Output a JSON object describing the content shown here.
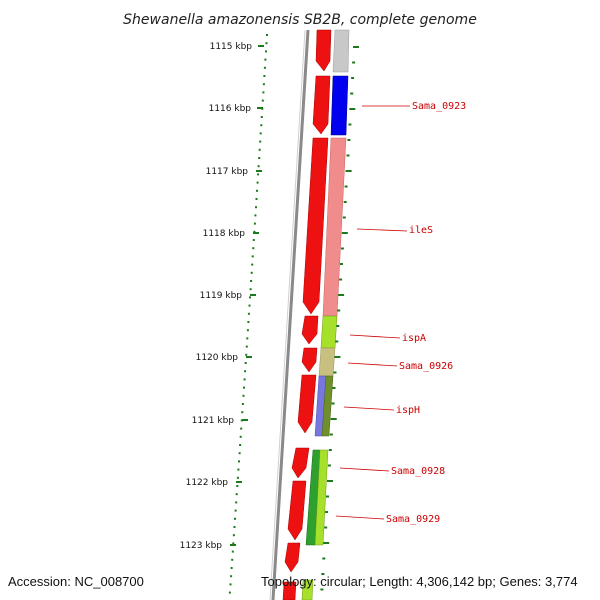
{
  "header": {
    "title": "Shewanella amazonensis SB2B, complete genome"
  },
  "colors": {
    "forward_strand": "#ee1111",
    "backbone": "#8c8c8c",
    "tick": "#1b7a1b",
    "label": "#cc0000",
    "grey_feature": "#c8c8c8",
    "blue_feature": "#0000ee",
    "pink_feature": "#f08c8c",
    "light_green_feature": "#a6e02a",
    "khaki_feature": "#c8c080",
    "purple_feature": "#7777dd",
    "olive_feature": "#6f8f2a",
    "green_feature": "#2ea02e"
  },
  "kbp_labels": [
    "1115 kbp",
    "1116 kbp",
    "1117 kbp",
    "1118 kbp",
    "1119 kbp",
    "1120 kbp",
    "1121 kbp",
    "1122 kbp",
    "1123 kbp"
  ],
  "gene_labels": [
    "Sama_0923",
    "ileS",
    "ispA",
    "Sama_0926",
    "ispH",
    "Sama_0928",
    "Sama_0929"
  ],
  "footer": {
    "accession": "Accession: NC_008700",
    "summary": "Topology: circular; Length: 4,306,142 bp; Genes: 3,774"
  }
}
